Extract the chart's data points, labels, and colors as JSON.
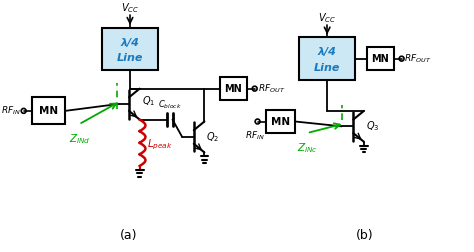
{
  "bg_color": "#ffffff",
  "lambda_box_fill": "#cce8f4",
  "lambda_box_border": "#000000",
  "blue_text": "#1a7abf",
  "green_color": "#00aa00",
  "red_color": "#cc0000",
  "dashed_green": "#00aa00",
  "label_a": "(a)",
  "label_b": "(b)",
  "lambda_line1": "λ/4",
  "lambda_line2": "Line",
  "mn_label": "MN"
}
